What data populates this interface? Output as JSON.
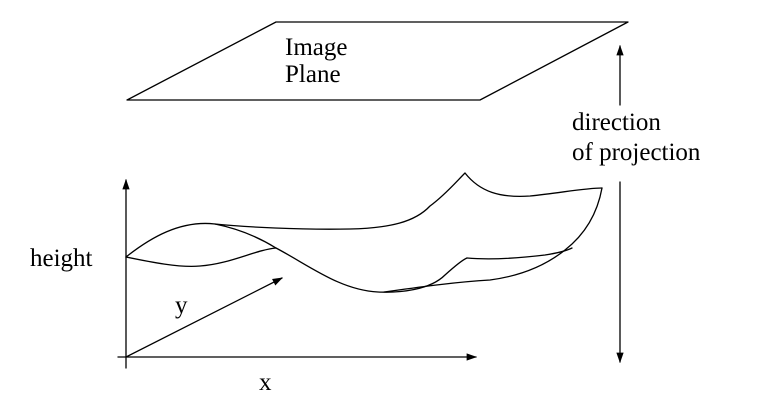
{
  "image_plane": {
    "line1": "Image",
    "line2": "Plane"
  },
  "projection": {
    "line1": "direction",
    "line2": "of projection"
  },
  "axes": {
    "height_label": "height",
    "y_label": "y",
    "x_label": "x"
  },
  "colors": {
    "ink": "#000000",
    "background": "#ffffff"
  }
}
